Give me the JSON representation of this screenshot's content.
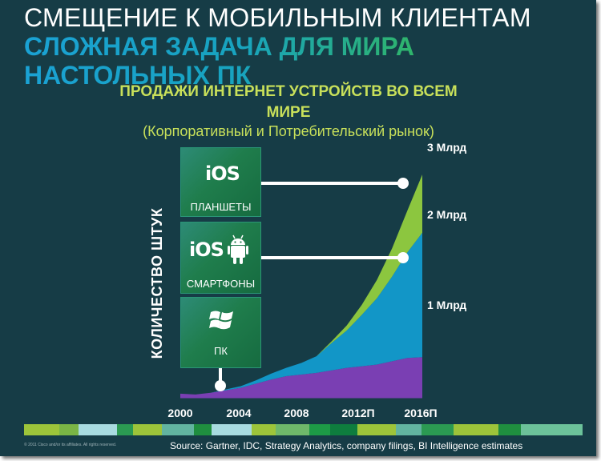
{
  "slide": {
    "title_line1": "СМЕЩЕНИЕ К МОБИЛЬНЫМ КЛИЕНТАМ",
    "title_line2": "СЛОЖНАЯ ЗАДАЧА ДЛЯ МИРА",
    "title_line3": "НАСТОЛЬНЫХ ПК",
    "copyright": "© 2011 Cisco and/or its affiliates. All rights reserved.",
    "source": "Source: Gartner, IDC, Strategy Analytics, company filings, BI Intelligence estimates",
    "stripe_colors": [
      "#9dc43a",
      "#7ab545",
      "#a8dbe0",
      "#2b9a52",
      "#9dc43a",
      "#62b4a0",
      "#1f8e3f",
      "#a8dbe0",
      "#9dc43a",
      "#6fb86a",
      "#1d9a46",
      "#0e7d3e",
      "#9dc43a",
      "#62b4a0",
      "#2b9a52",
      "#9dc43a",
      "#1f8e3f",
      "#6cc29a"
    ]
  },
  "cards": {
    "tablets": {
      "logo": "iOS",
      "label": "ПЛАНШЕТЫ"
    },
    "smartphones": {
      "logo": "iOS",
      "label": "СМАРТФОНЫ",
      "icon": "android-icon"
    },
    "pc": {
      "label": "ПК",
      "icon": "windows-icon"
    }
  },
  "chart_data": {
    "type": "area",
    "stacked": true,
    "title": "ПРОДАЖИ ИНТЕРНЕТ УСТРОЙСТВ ВО ВСЕМ МИРЕ",
    "subtitle": "(Корпоративный и Потребительский рынок)",
    "ylabel": "КОЛИЧЕСТВО ШТУК",
    "xlabel": "",
    "x_tick_labels": [
      "2000",
      "2004",
      "2008",
      "2012П",
      "2016П"
    ],
    "x": [
      2000,
      2001,
      2002,
      2003,
      2004,
      2005,
      2006,
      2007,
      2008,
      2009,
      2010,
      2011,
      2012,
      2013,
      2014,
      2015,
      2016
    ],
    "ylim": [
      0,
      3
    ],
    "y_annotations": [
      {
        "value": 3,
        "label": "3 Млрд"
      },
      {
        "value": 2,
        "label": "2 Млрд"
      },
      {
        "value": 1,
        "label": "1 Млрд"
      }
    ],
    "series": [
      {
        "name": "ПК",
        "color": "#7a3fb3",
        "values": [
          0.05,
          0.04,
          0.06,
          0.09,
          0.12,
          0.17,
          0.22,
          0.26,
          0.28,
          0.3,
          0.33,
          0.36,
          0.38,
          0.4,
          0.44,
          0.48,
          0.49
        ]
      },
      {
        "name": "СМАРТФОНЫ",
        "color": "#1296c7",
        "values": [
          0.0,
          0.0,
          0.0,
          0.01,
          0.02,
          0.04,
          0.07,
          0.1,
          0.14,
          0.2,
          0.33,
          0.45,
          0.62,
          0.8,
          1.02,
          1.27,
          1.5
        ]
      },
      {
        "name": "ПЛАНШЕТЫ",
        "color": "#8cc63f",
        "values": [
          0.0,
          0.0,
          0.0,
          0.0,
          0.0,
          0.0,
          0.0,
          0.0,
          0.0,
          0.0,
          0.02,
          0.06,
          0.12,
          0.22,
          0.34,
          0.5,
          0.7
        ]
      }
    ]
  }
}
